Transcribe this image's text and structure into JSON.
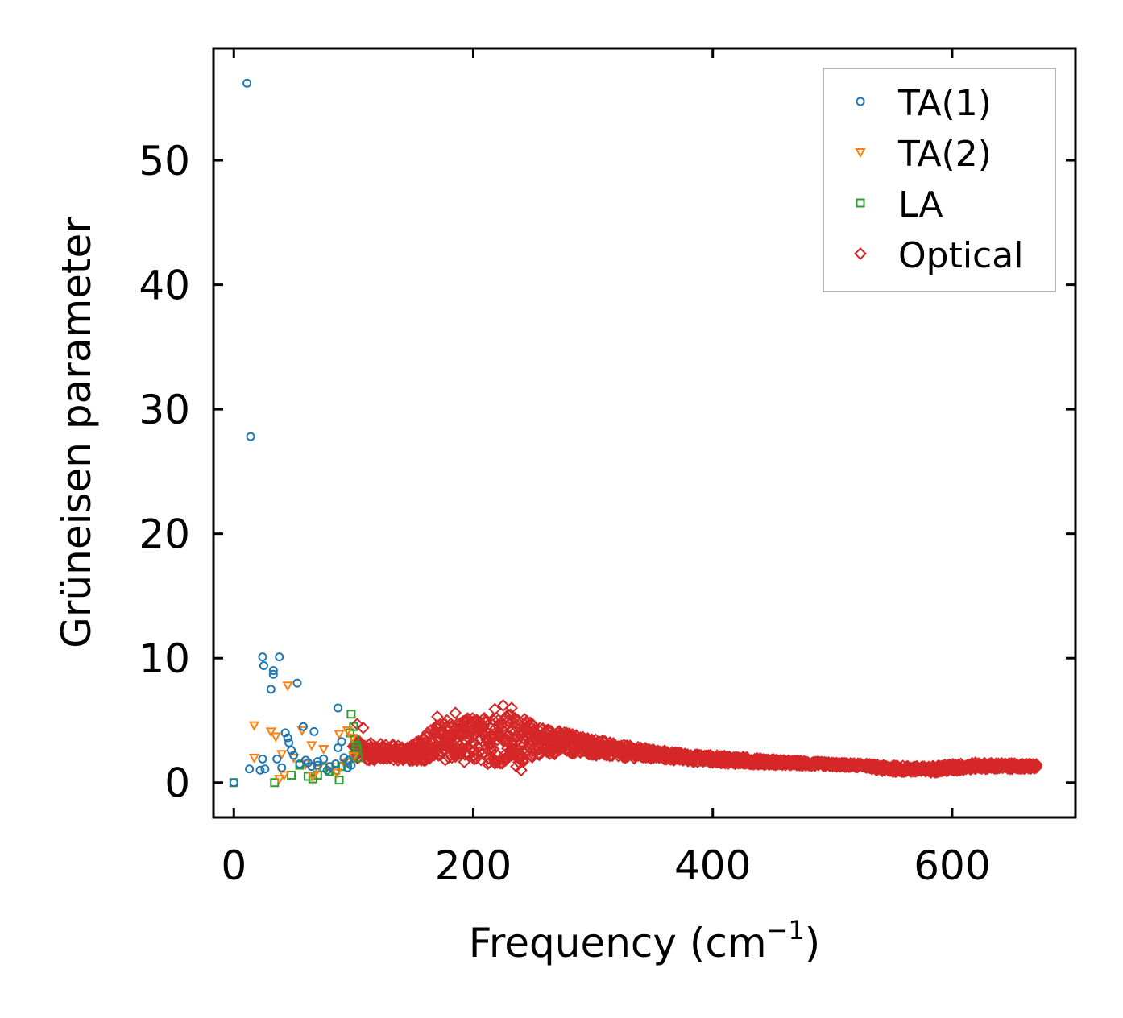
{
  "chart_data": {
    "type": "scatter",
    "title": "",
    "xlabel": "Frequency (cm",
    "xlabel_sup": "−1",
    "xlabel_suffix": ")",
    "ylabel": "Grüneisen parameter",
    "xlim": [
      -17,
      703
    ],
    "ylim": [
      -2.8,
      59
    ],
    "xticks": [
      0,
      200,
      400,
      600
    ],
    "yticks": [
      0,
      10,
      20,
      30,
      40,
      50
    ],
    "xtick_labels": [
      "0",
      "200",
      "400",
      "600"
    ],
    "ytick_labels": [
      "0",
      "10",
      "20",
      "30",
      "40",
      "50"
    ],
    "legend": {
      "position": "top-right"
    },
    "series": [
      {
        "name": "TA(1)",
        "marker": "circle",
        "color": "#1f77b4",
        "points": [
          [
            11,
            56.2
          ],
          [
            14,
            27.8
          ],
          [
            24,
            10.1
          ],
          [
            38,
            10.1
          ],
          [
            25,
            9.4
          ],
          [
            33,
            9.0
          ],
          [
            33,
            8.7
          ],
          [
            53,
            8.0
          ],
          [
            31,
            7.5
          ],
          [
            87,
            6.0
          ],
          [
            58,
            4.5
          ],
          [
            67,
            4.1
          ],
          [
            43,
            4.0
          ],
          [
            45,
            3.6
          ],
          [
            90,
            3.3
          ],
          [
            46,
            3.2
          ],
          [
            87,
            2.8
          ],
          [
            48,
            2.6
          ],
          [
            50,
            2.2
          ],
          [
            24,
            1.9
          ],
          [
            36,
            1.9
          ],
          [
            13,
            1.1
          ],
          [
            22,
            1.0
          ],
          [
            26,
            1.1
          ],
          [
            40,
            1.2
          ],
          [
            55,
            1.5
          ],
          [
            62,
            1.6
          ],
          [
            70,
            1.7
          ],
          [
            75,
            1.9
          ],
          [
            80,
            1.3
          ],
          [
            85,
            1.5
          ],
          [
            92,
            2.0
          ],
          [
            96,
            1.8
          ],
          [
            98,
            1.4
          ],
          [
            65,
            1.3
          ],
          [
            60,
            1.8
          ],
          [
            70,
            1.4
          ],
          [
            78,
            1.0
          ],
          [
            95,
            1.2
          ],
          [
            0,
            0.0
          ]
        ]
      },
      {
        "name": "TA(2)",
        "marker": "triangle-down",
        "color": "#ff7f0e",
        "points": [
          [
            45,
            7.8
          ],
          [
            17,
            4.6
          ],
          [
            31,
            4.1
          ],
          [
            35,
            3.7
          ],
          [
            57,
            4.2
          ],
          [
            88,
            3.9
          ],
          [
            95,
            4.2
          ],
          [
            99,
            3.6
          ],
          [
            65,
            3.0
          ],
          [
            75,
            2.7
          ],
          [
            40,
            2.3
          ],
          [
            50,
            2.0
          ],
          [
            17,
            2.0
          ],
          [
            60,
            1.5
          ],
          [
            70,
            1.1
          ],
          [
            80,
            1.3
          ],
          [
            92,
            1.6
          ],
          [
            100,
            2.1
          ],
          [
            38,
            0.3
          ],
          [
            42,
            0.6
          ],
          [
            66,
            0.5
          ],
          [
            86,
            0.8
          ]
        ]
      },
      {
        "name": "LA",
        "marker": "square",
        "color": "#2ca02c",
        "points": [
          [
            98,
            5.5
          ],
          [
            100,
            4.5
          ],
          [
            97,
            4.0
          ],
          [
            101,
            3.5
          ],
          [
            102,
            3.0
          ],
          [
            103,
            2.7
          ],
          [
            100,
            2.2
          ],
          [
            104,
            2.0
          ],
          [
            95,
            1.6
          ],
          [
            90,
            1.3
          ],
          [
            85,
            1.0
          ],
          [
            80,
            0.9
          ],
          [
            70,
            0.6
          ],
          [
            66,
            0.3
          ],
          [
            62,
            0.5
          ],
          [
            48,
            0.6
          ],
          [
            34,
            0.0
          ],
          [
            88,
            0.2
          ],
          [
            75,
            1.2
          ],
          [
            55,
            1.4
          ],
          [
            0,
            0.0
          ]
        ]
      },
      {
        "name": "Optical",
        "marker": "diamond",
        "color": "#d62728",
        "band": [
          [
            100,
            1.8,
            3.5
          ],
          [
            110,
            1.8,
            3.2
          ],
          [
            130,
            1.8,
            3.1
          ],
          [
            150,
            1.7,
            3.0
          ],
          [
            165,
            1.8,
            4.5
          ],
          [
            180,
            1.8,
            5.0
          ],
          [
            195,
            1.6,
            5.2
          ],
          [
            210,
            1.5,
            5.3
          ],
          [
            225,
            1.5,
            5.8
          ],
          [
            240,
            1.5,
            5.2
          ],
          [
            255,
            2.2,
            4.6
          ],
          [
            270,
            2.3,
            4.2
          ],
          [
            290,
            2.3,
            3.8
          ],
          [
            320,
            2.0,
            3.1
          ],
          [
            350,
            1.9,
            2.7
          ],
          [
            380,
            1.7,
            2.3
          ],
          [
            420,
            1.5,
            2.1
          ],
          [
            460,
            1.4,
            1.8
          ],
          [
            500,
            1.3,
            1.6
          ],
          [
            530,
            1.2,
            1.5
          ],
          [
            540,
            0.9,
            1.4
          ],
          [
            580,
            0.8,
            1.3
          ],
          [
            600,
            0.9,
            1.5
          ],
          [
            620,
            1.1,
            1.6
          ],
          [
            670,
            1.1,
            1.5
          ]
        ],
        "outliers": [
          [
            225,
            6.2
          ],
          [
            218,
            5.9
          ],
          [
            232,
            6.0
          ],
          [
            170,
            5.3
          ],
          [
            185,
            5.6
          ],
          [
            178,
            5.0
          ],
          [
            240,
            1.0
          ],
          [
            236,
            1.3
          ],
          [
            200,
            4.2
          ],
          [
            205,
            4.8
          ],
          [
            248,
            3.4
          ],
          [
            260,
            2.6
          ],
          [
            103,
            4.7
          ],
          [
            108,
            4.4
          ],
          [
            670,
            1.2
          ]
        ]
      }
    ]
  }
}
